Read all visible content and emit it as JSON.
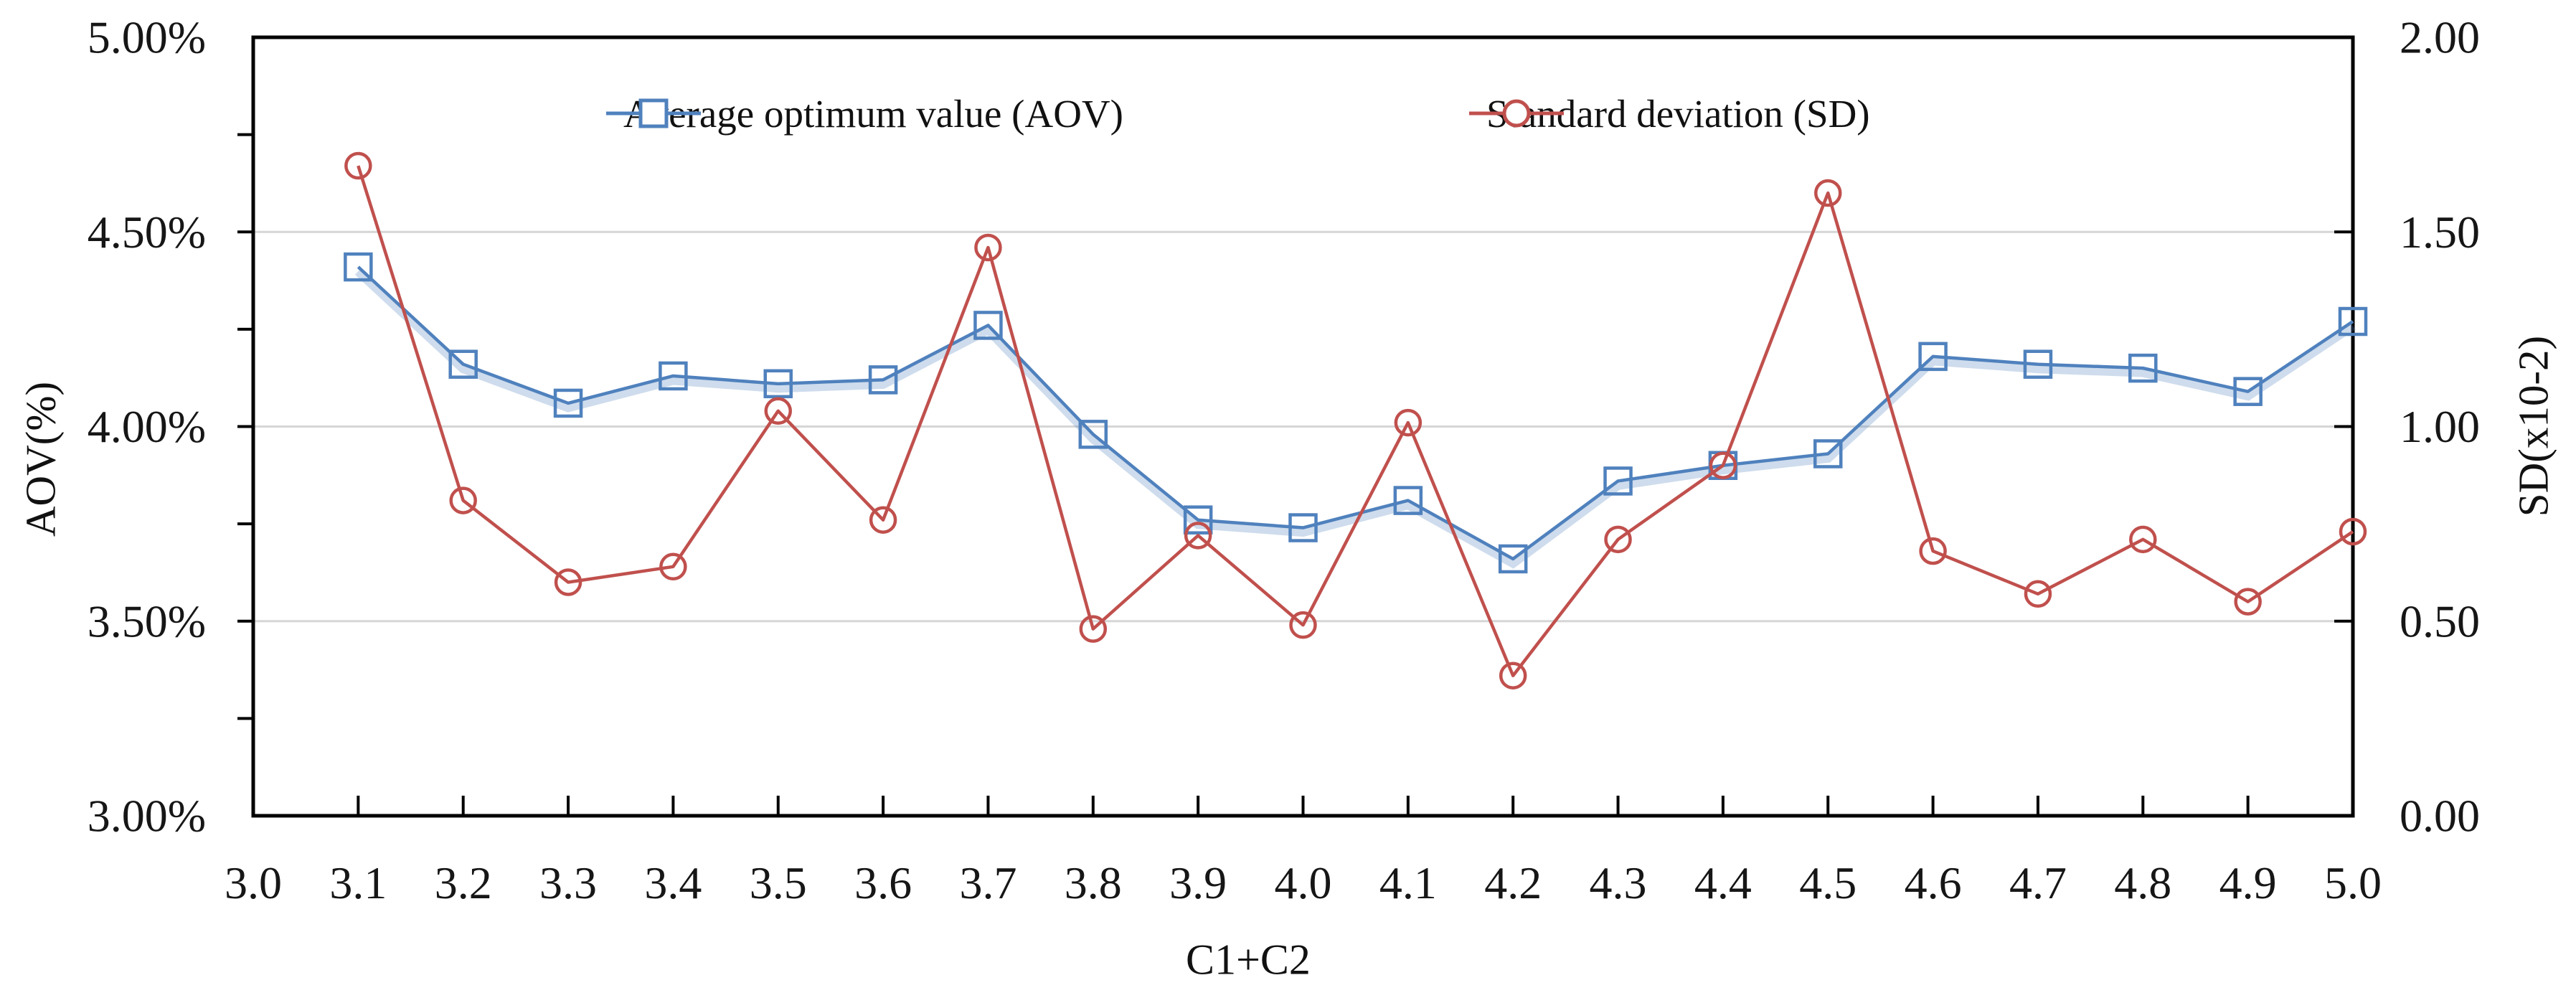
{
  "chart_data": {
    "type": "line",
    "title": "",
    "x": [
      3.1,
      3.2,
      3.3,
      3.4,
      3.5,
      3.6,
      3.7,
      3.8,
      3.9,
      4.0,
      4.1,
      4.2,
      4.3,
      4.4,
      4.5,
      4.6,
      4.7,
      4.8,
      4.9,
      5.0
    ],
    "series": [
      {
        "name": "Average optimum value (AOV)",
        "axis": "left",
        "color": "#4F81BD",
        "marker": "square",
        "values": [
          4.41,
          4.16,
          4.06,
          4.13,
          4.11,
          4.12,
          4.26,
          3.98,
          3.76,
          3.74,
          3.81,
          3.66,
          3.86,
          3.9,
          3.93,
          4.18,
          4.16,
          4.15,
          4.09,
          4.27
        ]
      },
      {
        "name": "Standard deviation (SD)",
        "axis": "right",
        "color": "#C0504D",
        "marker": "circle",
        "values": [
          1.67,
          0.81,
          0.6,
          0.64,
          1.04,
          0.76,
          1.46,
          0.48,
          0.72,
          0.49,
          1.01,
          0.36,
          0.71,
          0.9,
          1.6,
          0.68,
          0.57,
          0.71,
          0.55,
          0.73
        ]
      }
    ],
    "x_axis": {
      "title": "C1+C2",
      "min": 3.0,
      "max": 5.0,
      "tick_labels": [
        "3.0",
        "3.1",
        "3.2",
        "3.3",
        "3.4",
        "3.5",
        "3.6",
        "3.7",
        "3.8",
        "3.9",
        "4.0",
        "4.1",
        "4.2",
        "4.3",
        "4.4",
        "4.5",
        "4.6",
        "4.7",
        "4.8",
        "4.9",
        "5.0"
      ]
    },
    "left_axis": {
      "title": "AOV(%)",
      "min": 3.0,
      "max": 5.0,
      "tick_labels": [
        "5.00%",
        "4.50%",
        "4.00%",
        "3.50%",
        "3.00%"
      ]
    },
    "right_axis": {
      "title": "SD(x10-2)",
      "min": 0.0,
      "max": 2.0,
      "tick_labels": [
        "2.00",
        "1.50",
        "1.00",
        "0.50",
        "0.00"
      ]
    },
    "legend_position": "top-center",
    "grid": true,
    "colors": {
      "aov_blue": "#4F81BD",
      "sd_red": "#C0504D",
      "gridline": "#D6D6D6",
      "axis": "#000000"
    }
  }
}
